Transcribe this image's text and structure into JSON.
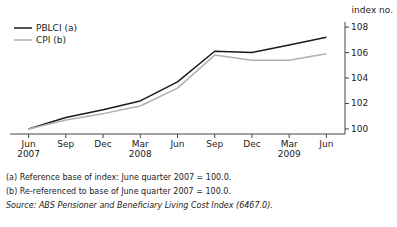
{
  "chart_data": {
    "type": "line",
    "categories": [
      "Jun\n2007",
      "Sep",
      "Dec",
      "Mar\n2008",
      "Jun",
      "Sep",
      "Dec",
      "Mar\n2009",
      "Jun"
    ],
    "series": [
      {
        "name": "PBLCI (a)",
        "color": "#1a1a1a",
        "values": [
          100.0,
          100.9,
          101.5,
          102.2,
          103.7,
          106.1,
          106.0,
          106.6,
          107.2
        ]
      },
      {
        "name": "CPI (b)",
        "color": "#b0b0b0",
        "values": [
          100.0,
          100.7,
          101.2,
          101.8,
          103.2,
          105.8,
          105.4,
          105.4,
          105.9
        ]
      }
    ],
    "ylim": [
      99.6,
      108.4
    ],
    "yticks": [
      100,
      102,
      104,
      106,
      108
    ],
    "y_label": "index no.",
    "annotations": [
      "(a)  Reference base of index: June quarter 2007 = 100.0.",
      "(b)  Re-referenced to base of June quarter 2007 = 100.0.",
      "Source: ABS Pensioner and Beneficiary Living Cost Index (6467.0)."
    ],
    "legend": "upper left",
    "grid": false
  }
}
